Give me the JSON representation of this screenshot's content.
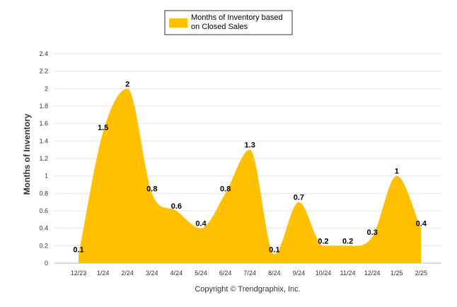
{
  "chart_data": {
    "type": "area",
    "categories": [
      "12/23",
      "1/24",
      "2/24",
      "3/24",
      "4/24",
      "5/24",
      "6/24",
      "7/24",
      "8/24",
      "9/24",
      "10/24",
      "11/24",
      "12/24",
      "1/25",
      "2/25"
    ],
    "series": [
      {
        "name": "Months of Inventory based on Closed Sales",
        "values": [
          0.1,
          1.5,
          2,
          0.8,
          0.6,
          0.4,
          0.8,
          1.3,
          0.1,
          0.7,
          0.2,
          0.2,
          0.3,
          1,
          0.4
        ],
        "color": "#FFC000"
      }
    ],
    "data_labels": [
      "0.1",
      "1.5",
      "2",
      "0.8",
      "0.6",
      "0.4",
      "0.8",
      "1.3",
      "0.1",
      "0.7",
      "0.2",
      "0.2",
      "0.3",
      "1",
      "0.4"
    ],
    "ylabel": "Months of Inventory",
    "xlabel": "",
    "ylim": [
      0,
      2.4
    ],
    "yticks": [
      "0",
      "0.2",
      "0.4",
      "0.6",
      "0.8",
      "1",
      "1.2",
      "1.4",
      "1.6",
      "1.8",
      "2",
      "2.2",
      "2.4"
    ],
    "grid": true,
    "legend_position": "top-center",
    "legend_lines": [
      "Months of Inventory based",
      "on Closed Sales"
    ]
  },
  "footer": "Copyright © Trendgraphix, Inc."
}
